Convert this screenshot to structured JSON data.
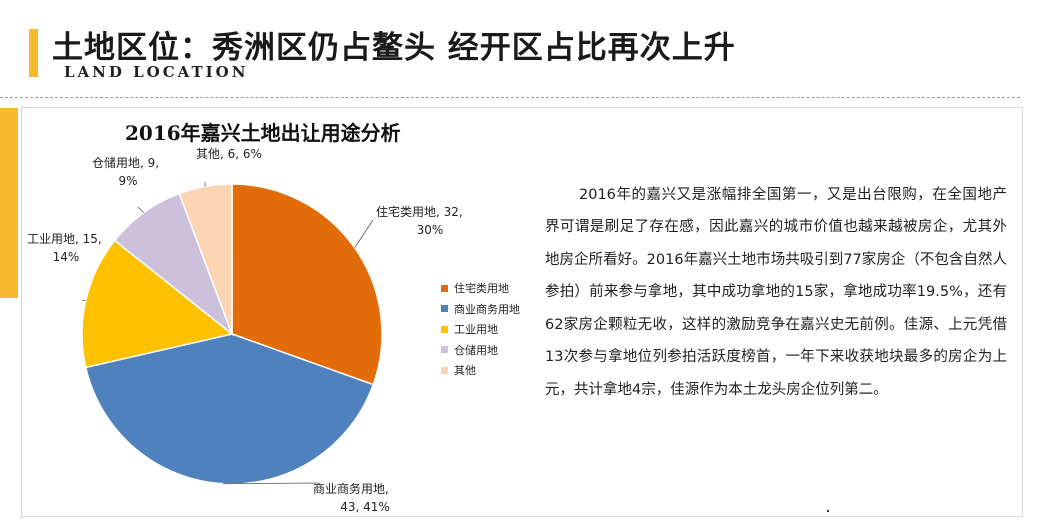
{
  "page": {
    "title": "土地区位：秀洲区仍占鳌头 经开区占比再次上升",
    "subtitle": "LAND LOCATION"
  },
  "chart_data": {
    "type": "pie",
    "title": "2016年嘉兴土地出让用途分析",
    "legend_position": "right",
    "slices": [
      {
        "name": "住宅类用地",
        "value": 32,
        "percent": "30%",
        "color": "#e36c0a",
        "label_line1": "住宅类用地, 32,",
        "label_line2": "30%"
      },
      {
        "name": "商业商务用地",
        "value": 43,
        "percent": "41%",
        "color": "#4f81bd",
        "label_line1": "商业商务用地,",
        "label_line2": "43, 41%"
      },
      {
        "name": "工业用地",
        "value": 15,
        "percent": "14%",
        "color": "#ffc000",
        "label_line1": "工业用地, 15,",
        "label_line2": "14%"
      },
      {
        "name": "仓储用地",
        "value": 9,
        "percent": "9%",
        "color": "#ccc0da",
        "label_line1": "仓储用地, 9,",
        "label_line2": "9%"
      },
      {
        "name": "其他",
        "value": 6,
        "percent": "6%",
        "color": "#fbd4b4",
        "label_line1": "其他, 6, 6%",
        "label_line2": ""
      }
    ]
  },
  "body_text": "2016年的嘉兴又是涨幅排全国第一，又是出台限购，在全国地产界可谓是刷足了存在感，因此嘉兴的城市价值也越来越被房企，尤其外地房企所看好。2016年嘉兴土地市场共吸引到77家房企（不包含自然人参拍）前来参与拿地，其中成功拿地的15家，拿地成功率19.5%，还有62家房企颗粒无收，这样的激励竞争在嘉兴史无前例。佳源、上元凭借13次参与拿地位列参拍活跃度榜首，一年下来收获地块最多的房企为上元，共计拿地4宗，佳源作为本土龙头房企位列第二。"
}
